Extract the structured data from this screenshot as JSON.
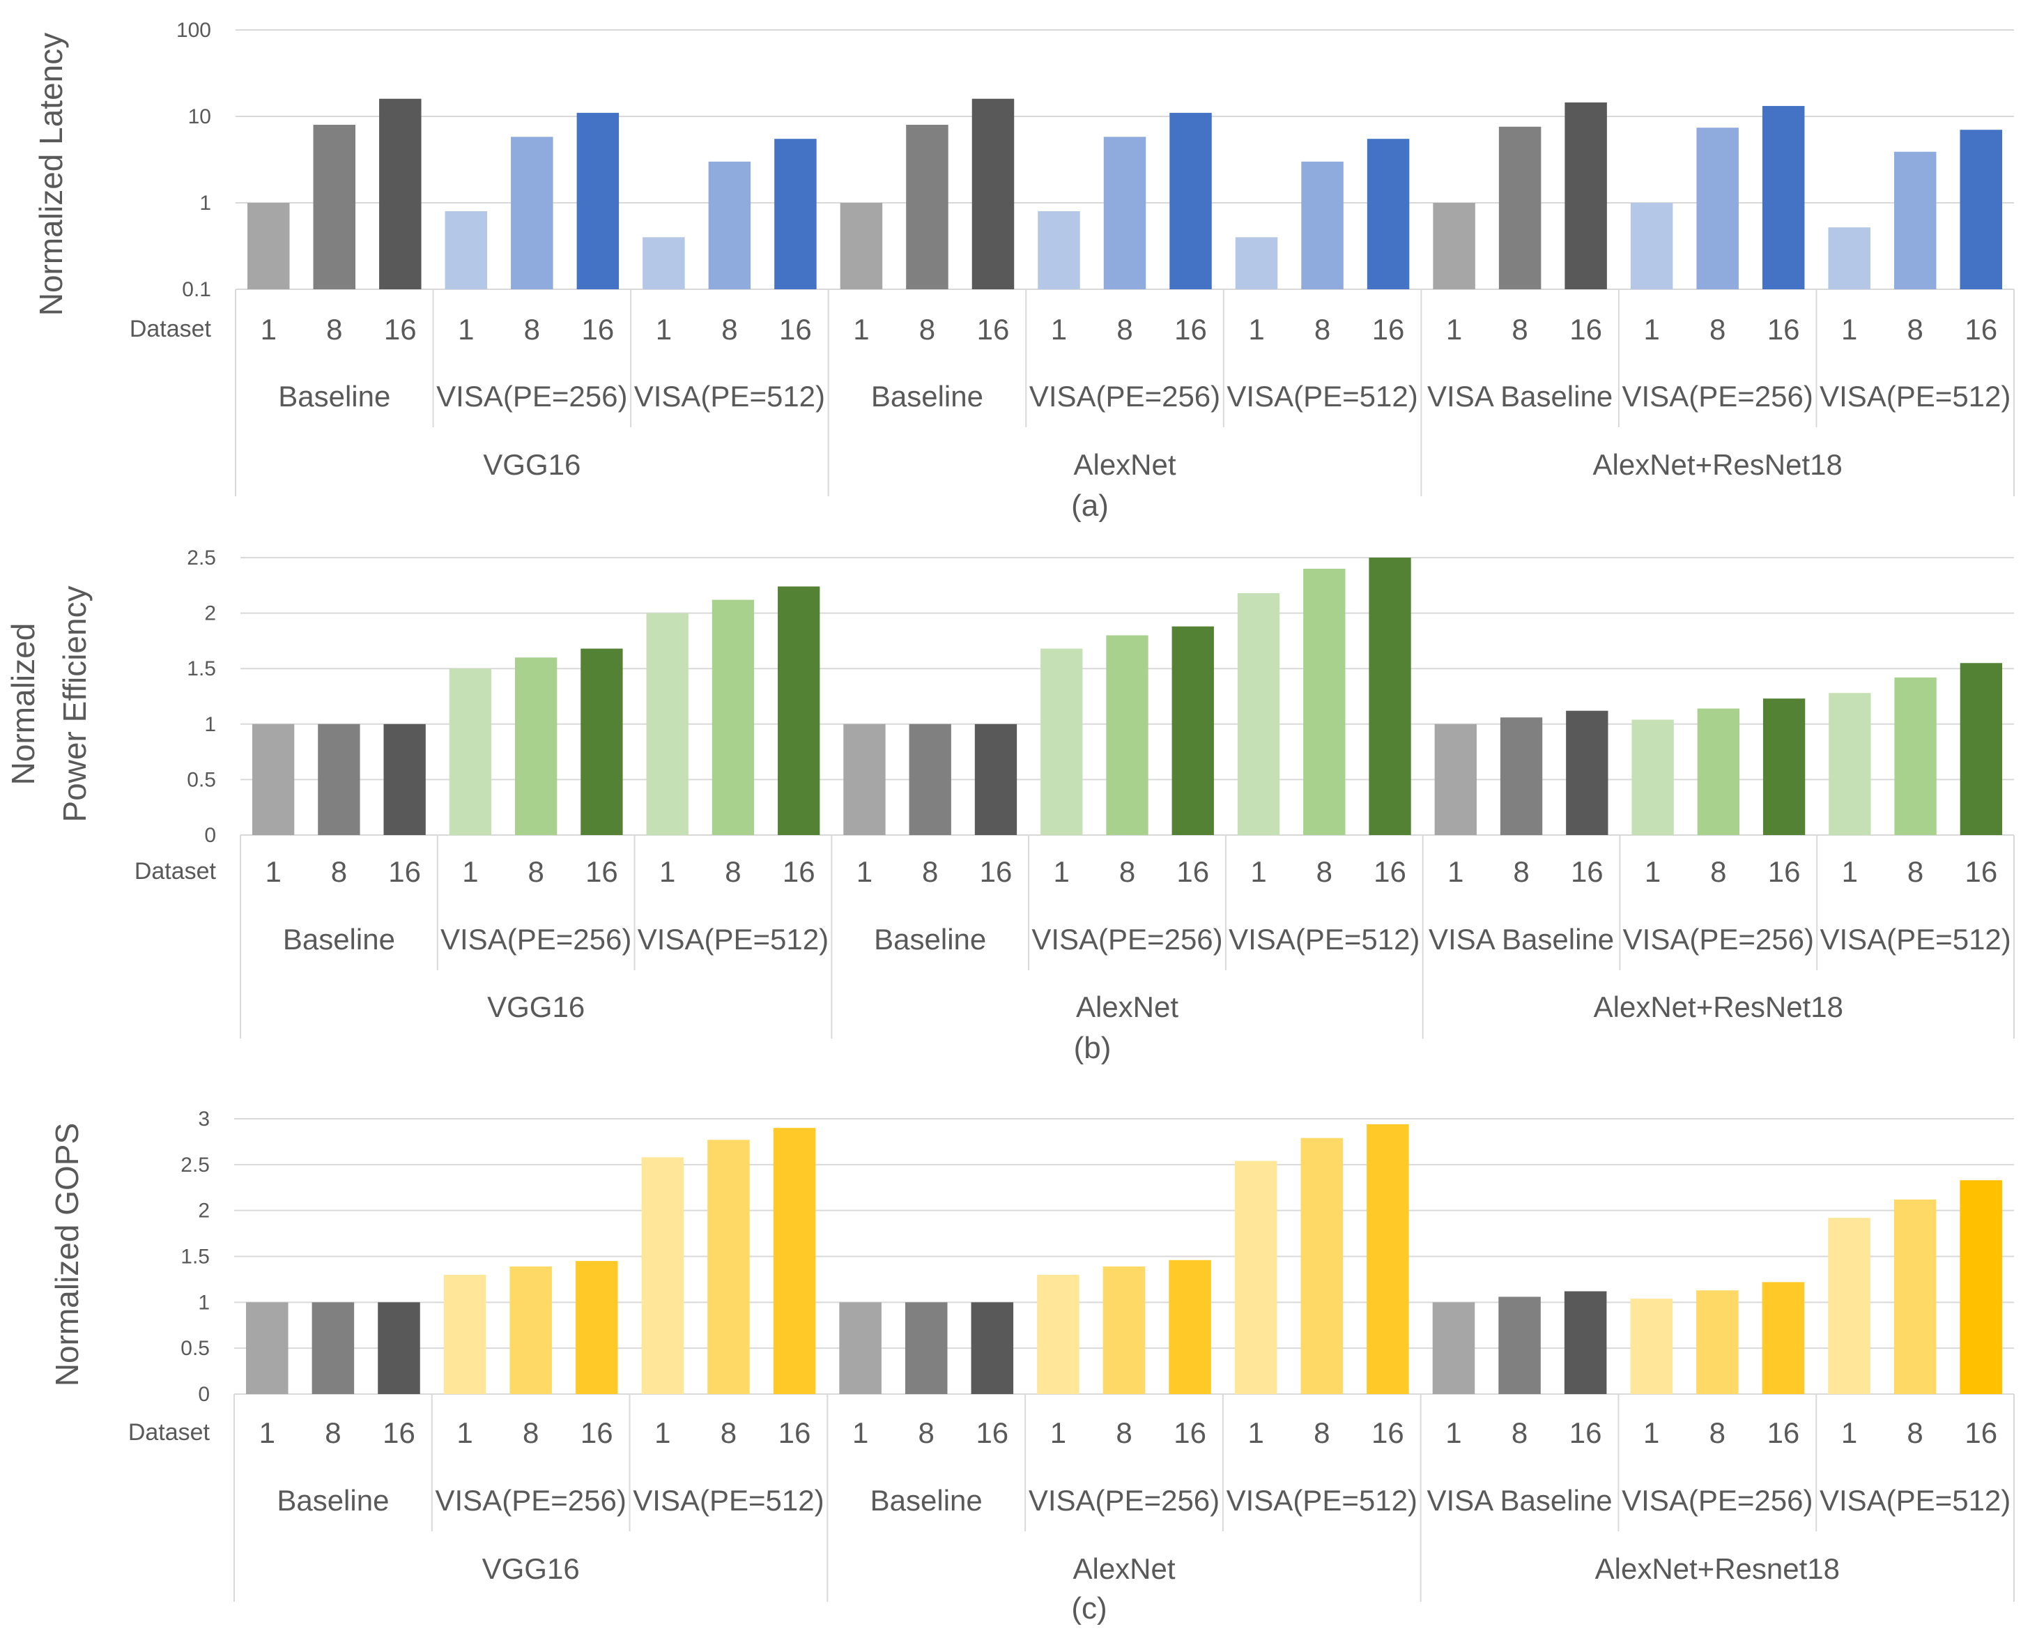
{
  "chart_data": [
    {
      "id": "a",
      "type": "bar",
      "scale": "log",
      "caption": "(a)",
      "ylabel": [
        "Normalized Latency"
      ],
      "ylim": [
        0.1,
        100
      ],
      "yticks": [
        "0.1",
        "1",
        "10",
        "100"
      ],
      "ytick_values": [
        0.1,
        1,
        10,
        100
      ],
      "dataset_label": "Dataset",
      "tiers": [
        {
          "models": [
            {
              "name": "VGG16",
              "configs": [
                "Baseline",
                "VISA(PE=256)",
                "VISA(PE=512)"
              ]
            },
            {
              "name": "AlexNet",
              "configs": [
                "Baseline",
                "VISA(PE=256)",
                "VISA(PE=512)"
              ]
            },
            {
              "name": "AlexNet+ResNet18",
              "configs": [
                "VISA Baseline",
                "VISA(PE=256)",
                "VISA(PE=512)"
              ]
            }
          ]
        }
      ],
      "datasets": [
        "1",
        "8",
        "16"
      ],
      "values": [
        [
          1,
          8,
          16
        ],
        [
          0.8,
          5.8,
          11
        ],
        [
          0.4,
          3,
          5.5
        ],
        [
          1,
          8,
          16
        ],
        [
          0.8,
          5.8,
          11
        ],
        [
          0.4,
          3,
          5.5
        ],
        [
          1,
          7.6,
          14.5
        ],
        [
          1,
          7.4,
          13.2
        ],
        [
          0.52,
          3.9,
          7
        ]
      ],
      "colors": [
        [
          "#a6a6a6",
          "#808080",
          "#595959"
        ],
        [
          "#b4c7e7",
          "#8faadc",
          "#4472c4"
        ],
        [
          "#b4c7e7",
          "#8faadc",
          "#4472c4"
        ],
        [
          "#a6a6a6",
          "#808080",
          "#595959"
        ],
        [
          "#b4c7e7",
          "#8faadc",
          "#4472c4"
        ],
        [
          "#b4c7e7",
          "#8faadc",
          "#4472c4"
        ],
        [
          "#a6a6a6",
          "#808080",
          "#595959"
        ],
        [
          "#b4c7e7",
          "#8faadc",
          "#4472c4"
        ],
        [
          "#b4c7e7",
          "#8faadc",
          "#4472c4"
        ]
      ]
    },
    {
      "id": "b",
      "type": "bar",
      "scale": "linear",
      "caption": "(b)",
      "ylabel": [
        "Normalized",
        "Power Efficiency"
      ],
      "ylim": [
        0,
        2.5
      ],
      "yticks": [
        "0",
        "0.5",
        "1",
        "1.5",
        "2",
        "2.5"
      ],
      "ytick_values": [
        0,
        0.5,
        1,
        1.5,
        2,
        2.5
      ],
      "dataset_label": "Dataset",
      "tiers": [
        {
          "models": [
            {
              "name": "VGG16",
              "configs": [
                "Baseline",
                "VISA(PE=256)",
                "VISA(PE=512)"
              ]
            },
            {
              "name": "AlexNet",
              "configs": [
                "Baseline",
                "VISA(PE=256)",
                "VISA(PE=512)"
              ]
            },
            {
              "name": "AlexNet+ResNet18",
              "configs": [
                "VISA Baseline",
                "VISA(PE=256)",
                "VISA(PE=512)"
              ]
            }
          ]
        }
      ],
      "datasets": [
        "1",
        "8",
        "16"
      ],
      "values": [
        [
          1,
          1,
          1
        ],
        [
          1.5,
          1.6,
          1.68
        ],
        [
          2.0,
          2.12,
          2.24
        ],
        [
          1,
          1,
          1
        ],
        [
          1.68,
          1.8,
          1.88
        ],
        [
          2.18,
          2.4,
          2.5
        ],
        [
          1,
          1.06,
          1.12
        ],
        [
          1.04,
          1.14,
          1.23
        ],
        [
          1.28,
          1.42,
          1.55
        ]
      ],
      "colors": [
        [
          "#a6a6a6",
          "#808080",
          "#595959"
        ],
        [
          "#c5e0b4",
          "#a9d18e",
          "#548235"
        ],
        [
          "#c5e0b4",
          "#a9d18e",
          "#548235"
        ],
        [
          "#a6a6a6",
          "#808080",
          "#595959"
        ],
        [
          "#c5e0b4",
          "#a9d18e",
          "#548235"
        ],
        [
          "#c5e0b4",
          "#a9d18e",
          "#548235"
        ],
        [
          "#a6a6a6",
          "#808080",
          "#595959"
        ],
        [
          "#c5e0b4",
          "#a9d18e",
          "#548235"
        ],
        [
          "#c5e0b4",
          "#a9d18e",
          "#548235"
        ]
      ]
    },
    {
      "id": "c",
      "type": "bar",
      "scale": "linear",
      "caption": "(c)",
      "ylabel": [
        "Normalized GOPS"
      ],
      "ylim": [
        0,
        3
      ],
      "yticks": [
        "0",
        "0.5",
        "1",
        "1.5",
        "2",
        "2.5",
        "3"
      ],
      "ytick_values": [
        0,
        0.5,
        1,
        1.5,
        2,
        2.5,
        3
      ],
      "dataset_label": "Dataset",
      "tiers": [
        {
          "models": [
            {
              "name": "VGG16",
              "configs": [
                "Baseline",
                "VISA(PE=256)",
                "VISA(PE=512)"
              ]
            },
            {
              "name": "AlexNet",
              "configs": [
                "Baseline",
                "VISA(PE=256)",
                "VISA(PE=512)"
              ]
            },
            {
              "name": "AlexNet+Resnet18",
              "configs": [
                "VISA Baseline",
                "VISA(PE=256)",
                "VISA(PE=512)"
              ]
            }
          ]
        }
      ],
      "datasets": [
        "1",
        "8",
        "16"
      ],
      "values": [
        [
          1,
          1,
          1
        ],
        [
          1.3,
          1.39,
          1.45
        ],
        [
          2.58,
          2.77,
          2.9
        ],
        [
          1,
          1,
          1
        ],
        [
          1.3,
          1.39,
          1.46
        ],
        [
          2.54,
          2.79,
          2.94
        ],
        [
          1,
          1.06,
          1.12
        ],
        [
          1.04,
          1.13,
          1.22
        ],
        [
          1.92,
          2.12,
          2.33
        ]
      ],
      "colors": [
        [
          "#a6a6a6",
          "#808080",
          "#595959"
        ],
        [
          "#ffe699",
          "#ffd966",
          "#ffca28"
        ],
        [
          "#ffe699",
          "#ffd966",
          "#ffca28"
        ],
        [
          "#a6a6a6",
          "#808080",
          "#595959"
        ],
        [
          "#ffe699",
          "#ffd966",
          "#ffca28"
        ],
        [
          "#ffe699",
          "#ffd966",
          "#ffca28"
        ],
        [
          "#a6a6a6",
          "#808080",
          "#595959"
        ],
        [
          "#ffe699",
          "#ffd966",
          "#ffca28"
        ],
        [
          "#ffe699",
          "#ffd966",
          "#ffc000"
        ]
      ]
    }
  ]
}
